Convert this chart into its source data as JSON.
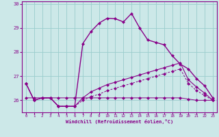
{
  "xlabel": "Windchill (Refroidissement éolien,°C)",
  "background_color": "#cce8e8",
  "grid_color": "#99cccc",
  "line_color": "#880088",
  "xlim": [
    -0.5,
    23.5
  ],
  "ylim": [
    25.5,
    30.1
  ],
  "yticks": [
    26,
    27,
    28,
    29,
    30
  ],
  "xticks": [
    0,
    1,
    2,
    3,
    4,
    5,
    6,
    7,
    8,
    9,
    10,
    11,
    12,
    13,
    14,
    15,
    16,
    17,
    18,
    19,
    20,
    21,
    22,
    23
  ],
  "line1_x": [
    0,
    1,
    2,
    3,
    4,
    5,
    6,
    7,
    8,
    9,
    10,
    11,
    12,
    13,
    14,
    15,
    16,
    17,
    18,
    19,
    20,
    21,
    22,
    23
  ],
  "line1_y": [
    26.7,
    26.0,
    26.1,
    26.1,
    25.75,
    25.75,
    25.75,
    28.35,
    28.85,
    29.2,
    29.4,
    29.38,
    29.25,
    29.6,
    29.0,
    28.5,
    28.4,
    28.3,
    27.85,
    27.5,
    27.3,
    26.9,
    26.6,
    26.1
  ],
  "line2_x": [
    0,
    1,
    2,
    3,
    4,
    5,
    6,
    7,
    8,
    9,
    10,
    11,
    12,
    13,
    14,
    15,
    16,
    17,
    18,
    19,
    20,
    21,
    22,
    23
  ],
  "line2_y": [
    26.7,
    26.0,
    26.1,
    26.1,
    25.75,
    25.75,
    25.75,
    26.1,
    26.35,
    26.5,
    26.65,
    26.75,
    26.85,
    26.95,
    27.05,
    27.15,
    27.25,
    27.35,
    27.45,
    27.55,
    26.85,
    26.55,
    26.3,
    26.0
  ],
  "line3_x": [
    0,
    1,
    2,
    3,
    4,
    5,
    6,
    7,
    8,
    9,
    10,
    11,
    12,
    13,
    14,
    15,
    16,
    17,
    18,
    19,
    20,
    21,
    22,
    23
  ],
  "line3_y": [
    26.7,
    26.0,
    26.1,
    26.1,
    25.75,
    25.75,
    25.75,
    26.0,
    26.15,
    26.25,
    26.4,
    26.5,
    26.6,
    26.7,
    26.8,
    26.9,
    27.0,
    27.1,
    27.2,
    27.3,
    26.7,
    26.4,
    26.2,
    26.0
  ],
  "line4_x": [
    0,
    1,
    2,
    3,
    4,
    5,
    6,
    7,
    8,
    9,
    10,
    11,
    12,
    13,
    14,
    15,
    16,
    17,
    18,
    19,
    20,
    21,
    22,
    23
  ],
  "line4_y": [
    26.1,
    26.1,
    26.1,
    26.1,
    26.1,
    26.1,
    26.1,
    26.1,
    26.1,
    26.1,
    26.1,
    26.1,
    26.1,
    26.1,
    26.1,
    26.1,
    26.1,
    26.1,
    26.1,
    26.1,
    26.05,
    26.0,
    26.0,
    26.0
  ]
}
